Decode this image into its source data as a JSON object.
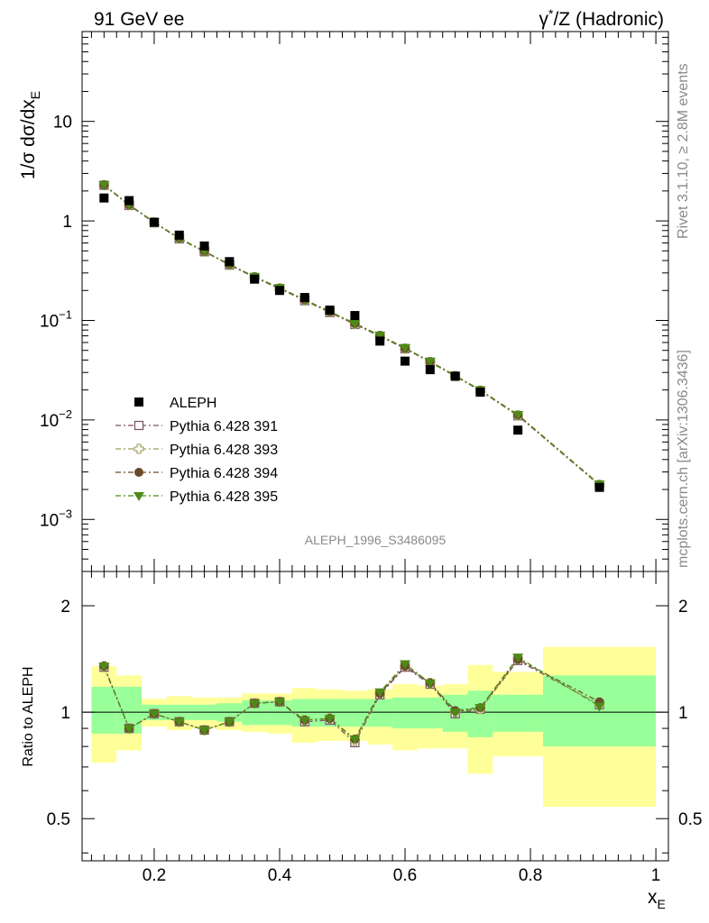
{
  "header": {
    "left": "91 GeV ee",
    "right_pre": "γ",
    "right_sup": "*",
    "right_post": "/Z (Hadronic)"
  },
  "side_labels": {
    "rivet": "Rivet 3.1.10, ≥ 2.8M events",
    "mcplots": "mcplots.cern.ch [arXiv:1306.3436]"
  },
  "watermark": "ALEPH_1996_S3486095",
  "main_ylabel": {
    "pre": "1/σ dσ/dx",
    "sub": "E"
  },
  "ratio_ylabel": "Ratio to ALEPH",
  "xlabel": {
    "main": "x",
    "sub": "E"
  },
  "legend": [
    {
      "label": "ALEPH"
    },
    {
      "label": "Pythia 6.428 391"
    },
    {
      "label": "Pythia 6.428 393"
    },
    {
      "label": "Pythia 6.428 394"
    },
    {
      "label": "Pythia 6.428 395"
    }
  ],
  "main_yticks": [
    {
      "base": "10",
      "exp": "",
      "value": 10
    },
    {
      "base": "1",
      "exp": "",
      "value": 1
    },
    {
      "base": "10",
      "exp": "−1",
      "value": 0.1
    },
    {
      "base": "10",
      "exp": "−2",
      "value": 0.01
    },
    {
      "base": "10",
      "exp": "−3",
      "value": 0.001
    }
  ],
  "ratio_yticks": [
    "0.5",
    "1",
    "2"
  ],
  "xticks": [
    "0.2",
    "0.4",
    "0.6",
    "0.8",
    "1"
  ],
  "colors": {
    "data": "#000000",
    "s391": "#7a4f63",
    "s393": "#9c9a55",
    "s394": "#6b4a2a",
    "s395": "#4e8a17",
    "band_inner": "#99ff99",
    "band_outer": "#ffff99"
  },
  "chart_data": {
    "type": "scatter",
    "x_scale": "linear",
    "xlim": [
      0.085,
      1.02
    ],
    "main": {
      "y_scale": "log",
      "ylim": [
        0.0003,
        80
      ]
    },
    "ratio": {
      "y_scale": "log",
      "ylim": [
        0.38,
        2.5
      ]
    },
    "bin_edges": [
      0.1,
      0.14,
      0.18,
      0.22,
      0.26,
      0.3,
      0.34,
      0.38,
      0.42,
      0.46,
      0.5,
      0.54,
      0.58,
      0.62,
      0.66,
      0.7,
      0.74,
      0.82,
      1.0
    ],
    "x": [
      0.12,
      0.16,
      0.2,
      0.24,
      0.28,
      0.32,
      0.36,
      0.4,
      0.44,
      0.48,
      0.52,
      0.56,
      0.6,
      0.64,
      0.68,
      0.72,
      0.78,
      0.91
    ],
    "data": {
      "name": "ALEPH",
      "values": [
        1.7,
        1.6,
        0.97,
        0.72,
        0.56,
        0.39,
        0.26,
        0.2,
        0.17,
        0.127,
        0.112,
        0.062,
        0.039,
        0.032,
        0.0275,
        0.019,
        0.0079,
        0.0021
      ]
    },
    "series": [
      {
        "name": "Pythia 6.428 391",
        "color_key": "s391",
        "marker": "open-square",
        "values": [
          2.28,
          1.43,
          0.96,
          0.66,
          0.49,
          0.36,
          0.27,
          0.208,
          0.158,
          0.12,
          0.091,
          0.069,
          0.052,
          0.038,
          0.0275,
          0.0196,
          0.011,
          0.0022
        ],
        "ratio": [
          1.34,
          0.9,
          0.99,
          0.94,
          0.89,
          0.94,
          1.06,
          1.07,
          0.94,
          0.95,
          0.82,
          1.12,
          1.34,
          1.2,
          0.99,
          1.02,
          1.4,
          1.05
        ]
      },
      {
        "name": "Pythia 6.428 393",
        "color_key": "s393",
        "marker": "open-cross",
        "values": [
          2.29,
          1.44,
          0.965,
          0.665,
          0.492,
          0.362,
          0.272,
          0.21,
          0.159,
          0.121,
          0.092,
          0.07,
          0.052,
          0.0382,
          0.0276,
          0.0197,
          0.0111,
          0.00222
        ],
        "ratio": [
          1.35,
          0.9,
          0.99,
          0.94,
          0.89,
          0.94,
          1.06,
          1.07,
          0.95,
          0.96,
          0.83,
          1.13,
          1.35,
          1.21,
          1.0,
          1.02,
          1.41,
          1.05
        ]
      },
      {
        "name": "Pythia 6.428 394",
        "color_key": "s394",
        "marker": "filled-circle",
        "values": [
          2.3,
          1.45,
          0.97,
          0.67,
          0.495,
          0.365,
          0.274,
          0.211,
          0.161,
          0.122,
          0.093,
          0.0705,
          0.0525,
          0.0385,
          0.0278,
          0.0199,
          0.0112,
          0.00225
        ],
        "ratio": [
          1.35,
          0.9,
          0.99,
          0.94,
          0.89,
          0.94,
          1.06,
          1.07,
          0.95,
          0.96,
          0.84,
          1.13,
          1.35,
          1.21,
          1.01,
          1.03,
          1.41,
          1.07
        ]
      },
      {
        "name": "Pythia 6.428 395",
        "color_key": "s395",
        "marker": "filled-triangle-down",
        "values": [
          2.31,
          1.46,
          0.975,
          0.672,
          0.497,
          0.367,
          0.276,
          0.213,
          0.162,
          0.123,
          0.0935,
          0.071,
          0.053,
          0.0388,
          0.028,
          0.02,
          0.0113,
          0.00226
        ],
        "ratio": [
          1.35,
          0.9,
          0.99,
          0.94,
          0.89,
          0.94,
          1.06,
          1.07,
          0.95,
          0.96,
          0.84,
          1.14,
          1.37,
          1.21,
          1.0,
          1.03,
          1.43,
          1.04
        ]
      }
    ],
    "bands": {
      "inner": [
        [
          0.87,
          1.18
        ],
        [
          0.87,
          1.18
        ],
        [
          0.95,
          1.05
        ],
        [
          0.95,
          1.05
        ],
        [
          0.95,
          1.05
        ],
        [
          0.94,
          1.06
        ],
        [
          0.92,
          1.08
        ],
        [
          0.92,
          1.08
        ],
        [
          0.91,
          1.09
        ],
        [
          0.91,
          1.09
        ],
        [
          0.91,
          1.09
        ],
        [
          0.91,
          1.09
        ],
        [
          0.9,
          1.1
        ],
        [
          0.9,
          1.1
        ],
        [
          0.88,
          1.12
        ],
        [
          0.85,
          1.15
        ],
        [
          0.88,
          1.12
        ],
        [
          0.8,
          1.27
        ]
      ],
      "outer": [
        [
          0.72,
          1.35
        ],
        [
          0.78,
          1.27
        ],
        [
          0.91,
          1.09
        ],
        [
          0.89,
          1.11
        ],
        [
          0.9,
          1.1
        ],
        [
          0.89,
          1.1
        ],
        [
          0.88,
          1.13
        ],
        [
          0.87,
          1.13
        ],
        [
          0.82,
          1.17
        ],
        [
          0.83,
          1.16
        ],
        [
          0.83,
          1.15
        ],
        [
          0.81,
          1.16
        ],
        [
          0.78,
          1.2
        ],
        [
          0.79,
          1.19
        ],
        [
          0.79,
          1.2
        ],
        [
          0.67,
          1.36
        ],
        [
          0.75,
          1.3
        ],
        [
          0.54,
          1.53
        ]
      ]
    }
  }
}
